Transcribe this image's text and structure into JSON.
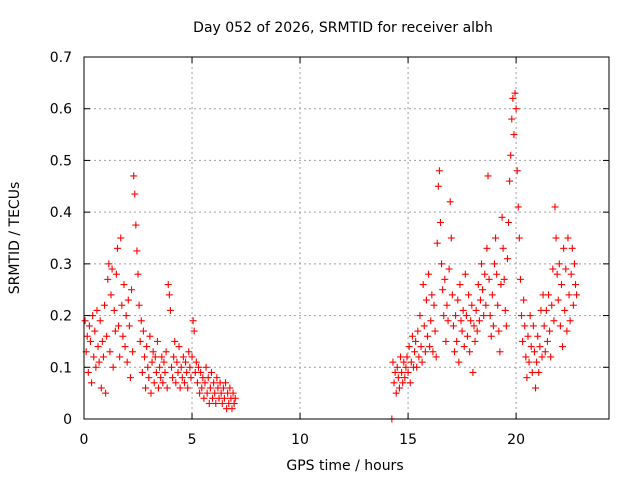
{
  "chart_data": {
    "type": "scatter",
    "title": "Day 052 of 2026, SRMTID for receiver albh",
    "xlabel": "GPS time / hours",
    "ylabel": "SRMTID / TECUs",
    "xlim": [
      0,
      24.3
    ],
    "ylim": [
      0,
      0.7
    ],
    "x_ticks": [
      0,
      5,
      10,
      15,
      20
    ],
    "x_tick_labels": [
      "0",
      "5",
      "10",
      "15",
      "20"
    ],
    "y_ticks": [
      0,
      0.1,
      0.2,
      0.3,
      0.4,
      0.5,
      0.6,
      0.7
    ],
    "y_tick_labels": [
      "0",
      "0.1",
      "0.2",
      "0.3",
      "0.4",
      "0.5",
      "0.6",
      "0.7"
    ],
    "grid": true,
    "marker": "+",
    "colors": {
      "points": "#ff0000",
      "grid": "#a0a0a0",
      "axes": "#000000"
    },
    "series": [
      {
        "name": "SRMTID",
        "points": [
          [
            0.05,
            0.19
          ],
          [
            0.1,
            0.13
          ],
          [
            0.15,
            0.16
          ],
          [
            0.2,
            0.09
          ],
          [
            0.25,
            0.18
          ],
          [
            0.3,
            0.15
          ],
          [
            0.35,
            0.07
          ],
          [
            0.4,
            0.2
          ],
          [
            0.45,
            0.12
          ],
          [
            0.5,
            0.17
          ],
          [
            0.55,
            0.1
          ],
          [
            0.6,
            0.21
          ],
          [
            0.65,
            0.14
          ],
          [
            0.7,
            0.11
          ],
          [
            0.75,
            0.19
          ],
          [
            0.8,
            0.06
          ],
          [
            0.85,
            0.15
          ],
          [
            0.9,
            0.12
          ],
          [
            0.95,
            0.22
          ],
          [
            1.0,
            0.05
          ],
          [
            1.05,
            0.16
          ],
          [
            1.1,
            0.27
          ],
          [
            1.15,
            0.3
          ],
          [
            1.2,
            0.13
          ],
          [
            1.25,
            0.24
          ],
          [
            1.3,
            0.29
          ],
          [
            1.35,
            0.1
          ],
          [
            1.4,
            0.21
          ],
          [
            1.45,
            0.17
          ],
          [
            1.5,
            0.28
          ],
          [
            1.55,
            0.33
          ],
          [
            1.6,
            0.18
          ],
          [
            1.65,
            0.12
          ],
          [
            1.7,
            0.35
          ],
          [
            1.75,
            0.22
          ],
          [
            1.8,
            0.16
          ],
          [
            1.85,
            0.26
          ],
          [
            1.9,
            0.14
          ],
          [
            1.95,
            0.2
          ],
          [
            2.0,
            0.11
          ],
          [
            2.05,
            0.23
          ],
          [
            2.1,
            0.18
          ],
          [
            2.15,
            0.08
          ],
          [
            2.2,
            0.25
          ],
          [
            2.25,
            0.13
          ],
          [
            2.3,
            0.47
          ],
          [
            2.35,
            0.435
          ],
          [
            2.4,
            0.375
          ],
          [
            2.45,
            0.325
          ],
          [
            2.5,
            0.28
          ],
          [
            2.55,
            0.22
          ],
          [
            2.6,
            0.15
          ],
          [
            2.65,
            0.19
          ],
          [
            2.7,
            0.09
          ],
          [
            2.75,
            0.17
          ],
          [
            2.8,
            0.12
          ],
          [
            2.85,
            0.06
          ],
          [
            2.9,
            0.14
          ],
          [
            2.95,
            0.1
          ],
          [
            3.0,
            0.08
          ],
          [
            3.05,
            0.16
          ],
          [
            3.1,
            0.05
          ],
          [
            3.15,
            0.11
          ],
          [
            3.2,
            0.13
          ],
          [
            3.25,
            0.07
          ],
          [
            3.3,
            0.12
          ],
          [
            3.35,
            0.09
          ],
          [
            3.4,
            0.15
          ],
          [
            3.45,
            0.06
          ],
          [
            3.5,
            0.1
          ],
          [
            3.55,
            0.08
          ],
          [
            3.6,
            0.12
          ],
          [
            3.65,
            0.07
          ],
          [
            3.7,
            0.11
          ],
          [
            3.75,
            0.09
          ],
          [
            3.8,
            0.13
          ],
          [
            3.85,
            0.06
          ],
          [
            3.9,
            0.26
          ],
          [
            3.95,
            0.24
          ],
          [
            4.0,
            0.21
          ],
          [
            4.05,
            0.1
          ],
          [
            4.1,
            0.08
          ],
          [
            4.15,
            0.12
          ],
          [
            4.2,
            0.15
          ],
          [
            4.25,
            0.07
          ],
          [
            4.3,
            0.11
          ],
          [
            4.35,
            0.09
          ],
          [
            4.4,
            0.14
          ],
          [
            4.45,
            0.06
          ],
          [
            4.5,
            0.1
          ],
          [
            4.55,
            0.08
          ],
          [
            4.6,
            0.12
          ],
          [
            4.65,
            0.07
          ],
          [
            4.7,
            0.11
          ],
          [
            4.75,
            0.09
          ],
          [
            4.8,
            0.06
          ],
          [
            4.85,
            0.13
          ],
          [
            4.9,
            0.1
          ],
          [
            4.95,
            0.08
          ],
          [
            5.0,
            0.12
          ],
          [
            5.05,
            0.19
          ],
          [
            5.1,
            0.17
          ],
          [
            5.15,
            0.09
          ],
          [
            5.2,
            0.11
          ],
          [
            5.25,
            0.07
          ],
          [
            5.3,
            0.1
          ],
          [
            5.35,
            0.05
          ],
          [
            5.4,
            0.09
          ],
          [
            5.45,
            0.06
          ],
          [
            5.5,
            0.08
          ],
          [
            5.55,
            0.04
          ],
          [
            5.6,
            0.07
          ],
          [
            5.65,
            0.1
          ],
          [
            5.7,
            0.05
          ],
          [
            5.75,
            0.08
          ],
          [
            5.8,
            0.03
          ],
          [
            5.85,
            0.06
          ],
          [
            5.9,
            0.09
          ],
          [
            5.95,
            0.04
          ],
          [
            6.0,
            0.07
          ],
          [
            6.05,
            0.05
          ],
          [
            6.1,
            0.03
          ],
          [
            6.15,
            0.08
          ],
          [
            6.2,
            0.06
          ],
          [
            6.25,
            0.04
          ],
          [
            6.3,
            0.07
          ],
          [
            6.35,
            0.05
          ],
          [
            6.4,
            0.03
          ],
          [
            6.45,
            0.06
          ],
          [
            6.5,
            0.04
          ],
          [
            6.55,
            0.07
          ],
          [
            6.6,
            0.02
          ],
          [
            6.65,
            0.05
          ],
          [
            6.7,
            0.03
          ],
          [
            6.75,
            0.06
          ],
          [
            6.8,
            0.04
          ],
          [
            6.85,
            0.02
          ],
          [
            6.9,
            0.05
          ],
          [
            6.95,
            0.03
          ],
          [
            7.0,
            0.04
          ],
          [
            14.25,
            0.0
          ],
          [
            14.3,
            0.11
          ],
          [
            14.35,
            0.07
          ],
          [
            14.4,
            0.09
          ],
          [
            14.45,
            0.05
          ],
          [
            14.5,
            0.1
          ],
          [
            14.55,
            0.08
          ],
          [
            14.6,
            0.06
          ],
          [
            14.65,
            0.12
          ],
          [
            14.7,
            0.09
          ],
          [
            14.75,
            0.07
          ],
          [
            14.8,
            0.11
          ],
          [
            14.85,
            0.08
          ],
          [
            14.9,
            0.1
          ],
          [
            14.95,
            0.12
          ],
          [
            15.0,
            0.09
          ],
          [
            15.05,
            0.14
          ],
          [
            15.1,
            0.07
          ],
          [
            15.15,
            0.11
          ],
          [
            15.2,
            0.16
          ],
          [
            15.25,
            0.1
          ],
          [
            15.3,
            0.13
          ],
          [
            15.35,
            0.15
          ],
          [
            15.4,
            0.1
          ],
          [
            15.45,
            0.17
          ],
          [
            15.5,
            0.12
          ],
          [
            15.55,
            0.2
          ],
          [
            15.6,
            0.14
          ],
          [
            15.65,
            0.11
          ],
          [
            15.7,
            0.26
          ],
          [
            15.75,
            0.18
          ],
          [
            15.8,
            0.13
          ],
          [
            15.85,
            0.23
          ],
          [
            15.9,
            0.16
          ],
          [
            15.95,
            0.28
          ],
          [
            16.0,
            0.14
          ],
          [
            16.05,
            0.19
          ],
          [
            16.1,
            0.24
          ],
          [
            16.15,
            0.13
          ],
          [
            16.2,
            0.22
          ],
          [
            16.25,
            0.17
          ],
          [
            16.3,
            0.12
          ],
          [
            16.35,
            0.34
          ],
          [
            16.4,
            0.45
          ],
          [
            16.45,
            0.48
          ],
          [
            16.5,
            0.38
          ],
          [
            16.55,
            0.3
          ],
          [
            16.6,
            0.25
          ],
          [
            16.65,
            0.2
          ],
          [
            16.7,
            0.27
          ],
          [
            16.75,
            0.15
          ],
          [
            16.8,
            0.22
          ],
          [
            16.85,
            0.19
          ],
          [
            16.9,
            0.29
          ],
          [
            16.95,
            0.42
          ],
          [
            17.0,
            0.35
          ],
          [
            17.05,
            0.24
          ],
          [
            17.1,
            0.18
          ],
          [
            17.15,
            0.13
          ],
          [
            17.2,
            0.2
          ],
          [
            17.25,
            0.15
          ],
          [
            17.3,
            0.23
          ],
          [
            17.35,
            0.11
          ],
          [
            17.4,
            0.26
          ],
          [
            17.45,
            0.19
          ],
          [
            17.5,
            0.17
          ],
          [
            17.55,
            0.21
          ],
          [
            17.6,
            0.14
          ],
          [
            17.65,
            0.28
          ],
          [
            17.7,
            0.2
          ],
          [
            17.75,
            0.16
          ],
          [
            17.8,
            0.24
          ],
          [
            17.85,
            0.13
          ],
          [
            17.9,
            0.19
          ],
          [
            17.95,
            0.22
          ],
          [
            18.0,
            0.09
          ],
          [
            18.05,
            0.18
          ],
          [
            18.1,
            0.15
          ],
          [
            18.15,
            0.21
          ],
          [
            18.2,
            0.17
          ],
          [
            18.25,
            0.26
          ],
          [
            18.3,
            0.19
          ],
          [
            18.35,
            0.23
          ],
          [
            18.4,
            0.3
          ],
          [
            18.45,
            0.25
          ],
          [
            18.5,
            0.2
          ],
          [
            18.55,
            0.28
          ],
          [
            18.6,
            0.22
          ],
          [
            18.65,
            0.33
          ],
          [
            18.7,
            0.47
          ],
          [
            18.75,
            0.27
          ],
          [
            18.8,
            0.2
          ],
          [
            18.85,
            0.16
          ],
          [
            18.9,
            0.24
          ],
          [
            18.95,
            0.18
          ],
          [
            19.0,
            0.3
          ],
          [
            19.05,
            0.35
          ],
          [
            19.1,
            0.28
          ],
          [
            19.15,
            0.22
          ],
          [
            19.2,
            0.17
          ],
          [
            19.25,
            0.13
          ],
          [
            19.3,
            0.26
          ],
          [
            19.35,
            0.39
          ],
          [
            19.4,
            0.33
          ],
          [
            19.45,
            0.27
          ],
          [
            19.5,
            0.21
          ],
          [
            19.55,
            0.18
          ],
          [
            19.6,
            0.31
          ],
          [
            19.65,
            0.38
          ],
          [
            19.7,
            0.46
          ],
          [
            19.75,
            0.51
          ],
          [
            19.8,
            0.58
          ],
          [
            19.85,
            0.62
          ],
          [
            19.9,
            0.55
          ],
          [
            19.95,
            0.63
          ],
          [
            20.0,
            0.6
          ],
          [
            20.05,
            0.48
          ],
          [
            20.1,
            0.41
          ],
          [
            20.15,
            0.35
          ],
          [
            20.2,
            0.27
          ],
          [
            20.25,
            0.2
          ],
          [
            20.3,
            0.15
          ],
          [
            20.35,
            0.23
          ],
          [
            20.4,
            0.18
          ],
          [
            20.45,
            0.12
          ],
          [
            20.5,
            0.08
          ],
          [
            20.55,
            0.16
          ],
          [
            20.6,
            0.11
          ],
          [
            20.65,
            0.2
          ],
          [
            20.7,
            0.14
          ],
          [
            20.75,
            0.09
          ],
          [
            20.8,
            0.18
          ],
          [
            20.85,
            0.13
          ],
          [
            20.9,
            0.06
          ],
          [
            20.95,
            0.11
          ],
          [
            21.0,
            0.16
          ],
          [
            21.05,
            0.09
          ],
          [
            21.1,
            0.14
          ],
          [
            21.15,
            0.21
          ],
          [
            21.2,
            0.12
          ],
          [
            21.25,
            0.24
          ],
          [
            21.3,
            0.18
          ],
          [
            21.35,
            0.13
          ],
          [
            21.4,
            0.21
          ],
          [
            21.45,
            0.15
          ],
          [
            21.5,
            0.24
          ],
          [
            21.55,
            0.17
          ],
          [
            21.6,
            0.12
          ],
          [
            21.65,
            0.22
          ],
          [
            21.7,
            0.29
          ],
          [
            21.75,
            0.19
          ],
          [
            21.8,
            0.41
          ],
          [
            21.85,
            0.35
          ],
          [
            21.9,
            0.28
          ],
          [
            21.95,
            0.23
          ],
          [
            22.0,
            0.3
          ],
          [
            22.05,
            0.18
          ],
          [
            22.1,
            0.26
          ],
          [
            22.15,
            0.14
          ],
          [
            22.2,
            0.33
          ],
          [
            22.25,
            0.21
          ],
          [
            22.3,
            0.29
          ],
          [
            22.35,
            0.17
          ],
          [
            22.4,
            0.35
          ],
          [
            22.45,
            0.24
          ],
          [
            22.5,
            0.19
          ],
          [
            22.55,
            0.28
          ],
          [
            22.6,
            0.33
          ],
          [
            22.65,
            0.22
          ],
          [
            22.7,
            0.3
          ],
          [
            22.75,
            0.26
          ],
          [
            22.8,
            0.24
          ]
        ]
      }
    ]
  }
}
